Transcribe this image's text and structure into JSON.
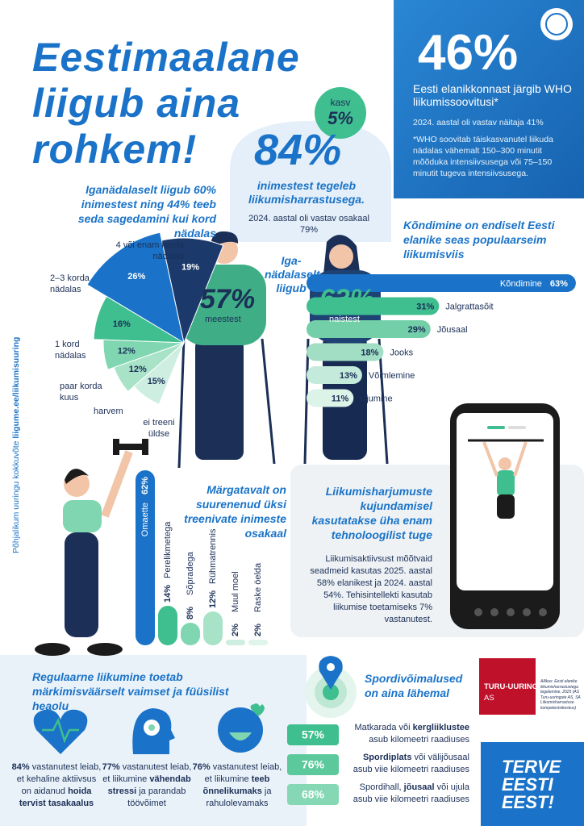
{
  "header": {
    "title_lines": [
      "Eestimaalane",
      "liigub aina",
      "rohkem!"
    ]
  },
  "who": {
    "value": "46%",
    "headline": "Eesti elanikkonnast järgib WHO liikumissoovitusi*",
    "previous": "2024. aastal oli vastav näitaja 41%",
    "footnote": "*WHO soovitab täiskasvanutel liikuda nädalas vähemalt 150–300 minutit mõõduka intensiivsusega või 75–150 minutit tugeva intensiivsusega."
  },
  "hobby": {
    "growth_label": "kasv",
    "growth": "5%",
    "value": "84%",
    "text": "inimestest tegeleb liikumisharrastusega.",
    "previous": "2024. aastal oli vastav osakaal 79%"
  },
  "weekly": {
    "title": "Iganädalaselt liigub 60% inimestest ning 44% teeb seda sagedamini kui kord nädalas",
    "center": "Iga-nädalaselt liigub",
    "men_value": "57%",
    "men_label": "meestest",
    "women_value": "63%",
    "women_label": "naistest"
  },
  "frequency": {
    "categories": [
      "4 või enam korda nädalas",
      "2–3 korda nädalas",
      "1 kord nädalas",
      "paar korda kuus",
      "harvem",
      "ei treeni üldse"
    ],
    "values": [
      19,
      26,
      16,
      12,
      12,
      15
    ],
    "value_labels": [
      "19%",
      "26%",
      "16%",
      "12%",
      "12%",
      "15%"
    ],
    "colors": [
      "#1b3a6b",
      "#1a73c8",
      "#3fbf8f",
      "#7fd6b0",
      "#a8e3c8",
      "#cdeee0"
    ]
  },
  "activities": {
    "title": "Kõndimine on endiselt Eesti elanike seas populaarseim liikumisviis",
    "categories": [
      "Kõndimine",
      "Jalgrattasõit",
      "Jõusaal",
      "Jooks",
      "Võimlemine",
      "Ujumine"
    ],
    "values": [
      63,
      31,
      29,
      18,
      13,
      11
    ],
    "value_labels": [
      "63%",
      "31%",
      "29%",
      "18%",
      "13%",
      "11%"
    ],
    "colors": [
      "#1a73c8",
      "#3fbf8f",
      "#72cfa8",
      "#a2dec3",
      "#c3eada",
      "#dcf3e8"
    ]
  },
  "training": {
    "title": "Märgatavalt on suurenenud üksi treenivate inimeste osakaal",
    "categories": [
      "Omaette",
      "Perelikmetega",
      "Sõpradega",
      "Rühmatrennis",
      "Muul moel",
      "Raske öelda"
    ],
    "values": [
      62,
      14,
      8,
      12,
      2,
      2
    ],
    "value_labels": [
      "62%",
      "14%",
      "8%",
      "12%",
      "2%",
      "2%"
    ],
    "colors": [
      "#1a73c8",
      "#3fbf8f",
      "#7fd6b0",
      "#a8e3c8",
      "#cdeee0",
      "#dff4ea"
    ]
  },
  "tech": {
    "title": "Liikumisharjumuste kujundamisel kasutatakse üha enam tehnoloogilist tuge",
    "text": "Liikumisaktiivsust mõõtvaid seadmeid kasutas 2025. aastal 58% elanikest ja 2024. aastal 54%. Tehisintellekti kasutab liikumise toetamiseks 7% vastanutest."
  },
  "survey_link": {
    "text": "Põhjalikum uuringu kokkuvõte",
    "link": "liigume.ee/liikumisuuring"
  },
  "mental": {
    "title": "Regulaarne liikumine toetab märkimisväärselt vaimset ja füüsilist heaolu",
    "items": [
      {
        "segments": [
          {
            "text": "84%",
            "bold": true
          },
          {
            "text": " vastanutest leiab, et kehaline aktiivsus on aidanud ",
            "bold": false
          },
          {
            "text": "hoida tervist tasakaalus",
            "bold": true
          }
        ]
      },
      {
        "segments": [
          {
            "text": "77%",
            "bold": true
          },
          {
            "text": " vastanutest leiab, et liikumine ",
            "bold": false
          },
          {
            "text": "vähendab stressi",
            "bold": true
          },
          {
            "text": " ja parandab töövõimet",
            "bold": false
          }
        ]
      },
      {
        "segments": [
          {
            "text": "76%",
            "bold": true
          },
          {
            "text": " vastanutest leiab, et liikumine ",
            "bold": false
          },
          {
            "text": "teeb õnnelikumaks",
            "bold": true
          },
          {
            "text": " ja rahulolevamaks",
            "bold": false
          }
        ]
      }
    ]
  },
  "sports": {
    "title": "Spordivõimalused on aina lähemal",
    "items": [
      {
        "value": "57%",
        "segments": [
          {
            "text": "Matkarada või ",
            "bold": false
          },
          {
            "text": "kergliiklustee",
            "bold": true
          },
          {
            "text": " asub kilomeetri raadiuses",
            "bold": false
          }
        ]
      },
      {
        "value": "76%",
        "segments": [
          {
            "text": "Spordiplats",
            "bold": true
          },
          {
            "text": " või välijõusaal asub viie kilomeetri raadiuses",
            "bold": false
          }
        ]
      },
      {
        "value": "68%",
        "segments": [
          {
            "text": "Spordihall, ",
            "bold": false
          },
          {
            "text": "jõusaal",
            "bold": true
          },
          {
            "text": " või ujula asub viie kilomeetri raadiuses",
            "bold": false
          }
        ]
      }
    ]
  },
  "source": {
    "company": "TURU-UURINGUTE",
    "company_suffix": "AS",
    "note": "Allikas: Eesti elanike liikumisharrastustega tegelemine, 2025 (AS Turu-uuringute AS, SA Liikumisharrastuse kompetentsikeskus)"
  },
  "logo": {
    "lines": [
      "TERVE",
      "EESTI",
      "EEST!"
    ]
  }
}
